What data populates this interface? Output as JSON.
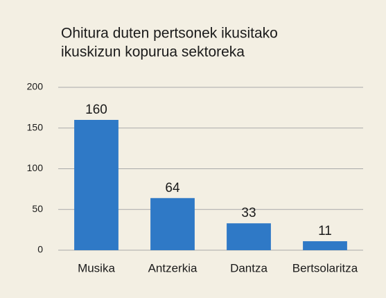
{
  "chart_data": {
    "type": "bar",
    "title": [
      "Ohitura duten pertsonek ikusitako",
      "ikuskizun kopurua sektoreka"
    ],
    "categories": [
      "Musika",
      "Antzerkia",
      "Dantza",
      "Bertsolaritza"
    ],
    "values": [
      160,
      64,
      33,
      11
    ],
    "color": "#2f79c6",
    "ylim": [
      0,
      200
    ],
    "yticks": [
      0,
      50,
      100,
      150,
      200
    ],
    "grid": true
  }
}
